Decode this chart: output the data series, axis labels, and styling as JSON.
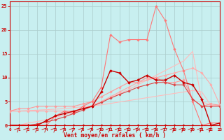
{
  "background_color": "#c8eff0",
  "grid_color": "#aacccc",
  "xlabel": "Vent moyen/en rafales ( km/h )",
  "xlabel_color": "#cc0000",
  "tick_color": "#cc0000",
  "spine_color": "#cc0000",
  "xlim": [
    0,
    23
  ],
  "ylim": [
    0,
    26
  ],
  "yticks": [
    0,
    5,
    10,
    15,
    20,
    25
  ],
  "xticks": [
    0,
    1,
    2,
    3,
    4,
    5,
    6,
    7,
    8,
    9,
    10,
    11,
    12,
    13,
    14,
    15,
    16,
    17,
    18,
    19,
    20,
    21,
    22,
    23
  ],
  "lines": [
    {
      "x": [
        0,
        1,
        2,
        3,
        4,
        5,
        6,
        7,
        8,
        9,
        10,
        11,
        12,
        13,
        14,
        15,
        16,
        17,
        18,
        19,
        20,
        21,
        22,
        23
      ],
      "y": [
        0,
        0,
        0,
        0,
        0,
        0,
        0,
        0,
        0,
        0,
        0,
        0,
        0,
        0,
        0,
        0,
        0,
        0,
        0,
        0,
        0,
        0,
        0,
        0
      ],
      "color": "#cc0000",
      "linewidth": 0.8,
      "marker": "D",
      "markersize": 1.8,
      "zorder": 5
    },
    {
      "x": [
        0,
        1,
        2,
        3,
        4,
        5,
        6,
        7,
        8,
        9,
        10,
        11,
        12,
        13,
        14,
        15,
        16,
        17,
        18,
        19,
        20,
        21,
        22,
        23
      ],
      "y": [
        3,
        3,
        3.1,
        3.2,
        3.3,
        3.4,
        3.5,
        3.7,
        3.9,
        4.1,
        4.3,
        4.6,
        4.9,
        5.2,
        5.5,
        5.8,
        6.1,
        6.4,
        6.7,
        7.0,
        7.3,
        7.0,
        4.2,
        4.2
      ],
      "color": "#ffbbbb",
      "linewidth": 0.8,
      "marker": null,
      "markersize": 0,
      "zorder": 2
    },
    {
      "x": [
        0,
        1,
        2,
        3,
        4,
        5,
        6,
        7,
        8,
        9,
        10,
        11,
        12,
        13,
        14,
        15,
        16,
        17,
        18,
        19,
        20,
        21,
        22,
        23
      ],
      "y": [
        0,
        0,
        0.5,
        0.8,
        1.2,
        1.7,
        2.2,
        2.8,
        3.5,
        4.2,
        5.0,
        5.8,
        6.7,
        7.5,
        8.5,
        9.5,
        10.5,
        11.5,
        12.5,
        13.5,
        15.5,
        5.0,
        4.2,
        4.2
      ],
      "color": "#ffbbbb",
      "linewidth": 0.8,
      "marker": null,
      "markersize": 0,
      "zorder": 2
    },
    {
      "x": [
        0,
        1,
        2,
        3,
        4,
        5,
        6,
        7,
        8,
        9,
        10,
        11,
        12,
        13,
        14,
        15,
        16,
        17,
        18,
        19,
        20,
        21,
        22,
        23
      ],
      "y": [
        3,
        3,
        3,
        3,
        3,
        3,
        3,
        3,
        3.5,
        4,
        5,
        6,
        7,
        8,
        9,
        9.5,
        10,
        10.5,
        11,
        11.5,
        12,
        11,
        8.5,
        4.2
      ],
      "color": "#ffaaaa",
      "linewidth": 0.8,
      "marker": "D",
      "markersize": 1.8,
      "zorder": 3
    },
    {
      "x": [
        0,
        1,
        2,
        3,
        4,
        5,
        6,
        7,
        8,
        9,
        10,
        11,
        12,
        13,
        14,
        15,
        16,
        17,
        18,
        19,
        20,
        21,
        22,
        23
      ],
      "y": [
        3,
        3.5,
        3.5,
        4,
        4,
        4,
        4,
        4,
        4.5,
        5,
        6,
        7,
        8,
        9,
        9,
        10,
        10,
        9,
        9,
        9.5,
        5.5,
        4,
        4.5,
        4.2
      ],
      "color": "#ff9999",
      "linewidth": 0.8,
      "marker": "D",
      "markersize": 1.8,
      "zorder": 3
    },
    {
      "x": [
        0,
        1,
        2,
        3,
        4,
        5,
        6,
        7,
        8,
        9,
        10,
        11,
        12,
        13,
        14,
        15,
        16,
        17,
        18,
        19,
        20,
        21,
        22,
        23
      ],
      "y": [
        0,
        0,
        0,
        0.3,
        0.7,
        1.2,
        1.8,
        2.5,
        3.2,
        4.0,
        4.8,
        5.7,
        6.5,
        7.2,
        8.0,
        8.5,
        9.0,
        9.0,
        8.5,
        8.5,
        5.5,
        4.0,
        4.0,
        4.0
      ],
      "color": "#dd4444",
      "linewidth": 0.8,
      "marker": "D",
      "markersize": 1.8,
      "zorder": 4
    },
    {
      "x": [
        0,
        1,
        2,
        3,
        4,
        5,
        6,
        7,
        8,
        9,
        10,
        11,
        12,
        13,
        14,
        15,
        16,
        17,
        18,
        19,
        20,
        21,
        22,
        23
      ],
      "y": [
        0,
        0,
        0,
        0,
        1,
        2,
        2.5,
        3,
        3.5,
        4,
        7,
        11.5,
        11,
        9,
        9.5,
        10.5,
        9.5,
        9.5,
        10.5,
        9,
        8.5,
        5.5,
        0,
        0.5
      ],
      "color": "#cc0000",
      "linewidth": 1.0,
      "marker": "D",
      "markersize": 2.0,
      "zorder": 6
    },
    {
      "x": [
        0,
        1,
        2,
        3,
        4,
        5,
        6,
        7,
        8,
        9,
        10,
        11,
        12,
        13,
        14,
        15,
        16,
        17,
        18,
        19,
        20,
        21,
        22,
        23
      ],
      "y": [
        0,
        0,
        0,
        0,
        0,
        2,
        3,
        2.5,
        4,
        5,
        8,
        19,
        17.5,
        18,
        18,
        18,
        25,
        22,
        16,
        11.5,
        5,
        0,
        0.5,
        0.5
      ],
      "color": "#ff7777",
      "linewidth": 0.8,
      "marker": "D",
      "markersize": 1.8,
      "zorder": 3
    }
  ],
  "wind_arrows_x": [
    1,
    2,
    3,
    4,
    5,
    6,
    7,
    8,
    9,
    10,
    11,
    12,
    13,
    14,
    15,
    16,
    17,
    18,
    19,
    20,
    21,
    22
  ],
  "figsize": [
    3.2,
    2.0
  ],
  "dpi": 100
}
